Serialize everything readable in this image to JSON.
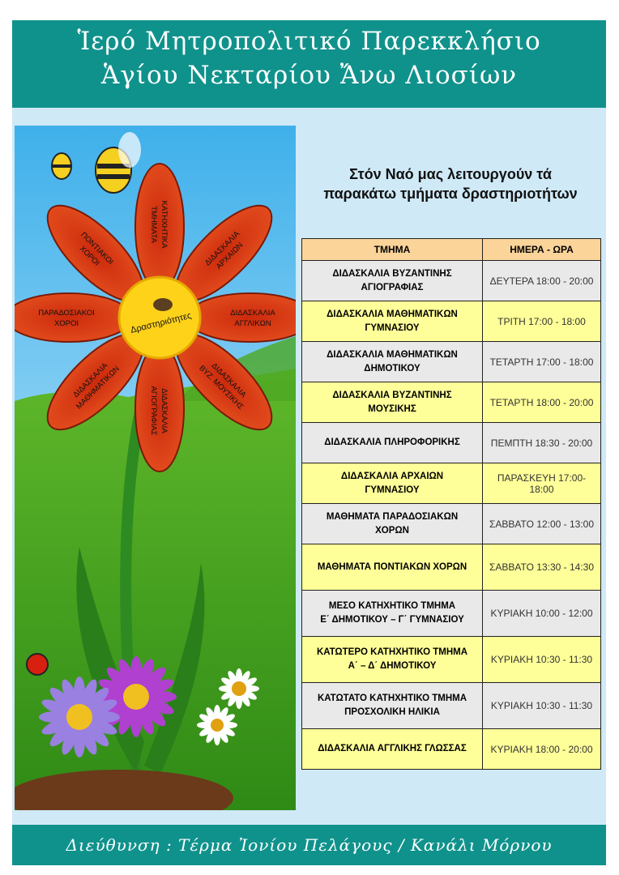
{
  "header": {
    "line1": "Ἱερό Μητροπολιτικό Παρεκκλήσιο",
    "line2": "Ἁγίου Νεκταρίου Ἄνω Λιοσίων"
  },
  "heading": {
    "line1": "Στόν Ναό μας λειτουργούν τά",
    "line2": "παρακάτω τμήματα δραστηριοτήτων"
  },
  "flower": {
    "center": "Δραστηριότητες",
    "petals": [
      {
        "l1": "ΚΑΤΗΧΗΤΙΚΑ",
        "l2": "ΤΜΗΜΑΤΑ"
      },
      {
        "l1": "ΔΙΔΑΣΚΑΛΙΑ",
        "l2": "ΑΡΧΑΙΩΝ"
      },
      {
        "l1": "ΔΙΔΑΣΚΑΛΙΑ",
        "l2": "ΑΓΓΛΙΚΩΝ"
      },
      {
        "l1": "ΔΙΔΑΣΚΑΛΙΑ",
        "l2": "ΒΥΖ. ΜΟΥΣΙΚΗΣ"
      },
      {
        "l1": "ΔΙΔΑΣΚΑΛΙΑ",
        "l2": "ΑΓΙΟΓΡΑΦΙΑΣ"
      },
      {
        "l1": "ΔΙΔΑΣΚΑΛΙΑ",
        "l2": "ΜΑΘΗΜΑΤΙΚΩΝ"
      },
      {
        "l1": "ΠΑΡΑΔΟΣΙΑΚΟΙ",
        "l2": "ΧΟΡΟΙ"
      },
      {
        "l1": "ΠΟΝΤΙΑΚΟΙ",
        "l2": "ΧΟΡΟΙ"
      }
    ]
  },
  "table": {
    "headers": [
      "ΤΜΗΜΑ",
      "ΗΜΕΡΑ -  ΩΡΑ"
    ],
    "rows": [
      {
        "l1": "ΔΙΔΑΣΚΑΛΙΑ ΒΥΖΑΝΤΙΝΗΣ",
        "l2": "ΑΓΙΟΓΡΑΦΙΑΣ",
        "time": "ΔΕΥΤΕΡΑ  18:00 - 20:00"
      },
      {
        "l1": "ΔΙΔΑΣΚΑΛΙΑ ΜΑΘΗΜΑΤΙΚΩΝ",
        "l2": "ΓΥΜΝΑΣΙΟΥ",
        "time": "ΤΡΙΤΗ  17:00 - 18:00"
      },
      {
        "l1": "ΔΙΔΑΣΚΑΛΙΑ ΜΑΘΗΜΑΤΙΚΩΝ",
        "l2": "ΔΗΜΟΤΙΚΟΥ",
        "time": "ΤΕΤΑΡΤΗ  17:00 - 18:00"
      },
      {
        "l1": "ΔΙΔΑΣΚΑΛΙΑ ΒΥΖΑΝΤΙΝΗΣ",
        "l2": "ΜΟΥΣΙΚΗΣ",
        "time": "ΤΕΤΑΡΤΗ  18:00 - 20:00"
      },
      {
        "l1": "ΔΙΔΑΣΚΑΛΙΑ ΠΛΗΡΟΦΟΡΙΚΗΣ",
        "l2": "",
        "time": "ΠΕΜΠΤΗ  18:30 - 20:00"
      },
      {
        "l1": "ΔΙΔΑΣΚΑΛΙΑ ΑΡΧΑΙΩΝ",
        "l2": "ΓΥΜΝΑΣΙΟΥ",
        "time": "ΠΑΡΑΣΚΕΥΗ  17:00-18:00"
      },
      {
        "l1": "ΜΑΘΗΜΑΤΑ ΠΑΡΑΔΟΣΙΑΚΩΝ",
        "l2": "ΧΟΡΩΝ",
        "time": "ΣΑΒΒΑΤΟ  12:00 - 13:00"
      },
      {
        "l1": "ΜΑΘΗΜΑΤΑ ΠΟΝΤΙΑΚΩΝ ΧΟΡΩΝ",
        "l2": "",
        "time": "ΣΑΒΒΑΤΟ  13:30 - 14:30"
      },
      {
        "l1": "ΜΕΣΟ ΚΑΤΗΧΗΤΙΚΟ ΤΜΗΜΑ",
        "l2": "Ε΄ ΔΗΜΟΤΙΚΟΥ – Γ΄ ΓΥΜΝΑΣΙΟΥ",
        "time": "ΚΥΡΙΑΚΗ  10:00 - 12:00"
      },
      {
        "l1": "ΚΑΤΩΤΕΡΟ ΚΑΤΗΧΗΤΙΚΟ ΤΜΗΜΑ",
        "l2": "Α΄ – Δ΄ ΔΗΜΟΤΙΚΟΥ",
        "time": "ΚΥΡΙΑΚΗ  10:30 - 11:30"
      },
      {
        "l1": "ΚΑΤΩΤΑΤΟ ΚΑΤΗΧΗΤΙΚΟ ΤΜΗΜΑ",
        "l2": "ΠΡΟΣΧΟΛΙΚΗ ΗΛΙΚΙΑ",
        "time": "ΚΥΡΙΑΚΗ  10:30 - 11:30"
      },
      {
        "l1": "ΔΙΔΑΣΚΑΛΙΑ ΑΓΓΛΙΚΗΣ ΓΛΩΣΣΑΣ",
        "l2": "",
        "time": "ΚΥΡΙΑΚΗ  18:00 - 20:00"
      }
    ]
  },
  "footer": {
    "address": "Διεύθυνση : Τέρμα Ἰονίου Πελάγους / Κανάλι Μόρνου"
  },
  "colors": {
    "teal": "#10928c",
    "petal": "#d9401a",
    "center": "#ffd21a",
    "row_gray": "#e9e9e9",
    "row_yellow": "#ffff99",
    "header_row": "#fbd49a"
  }
}
